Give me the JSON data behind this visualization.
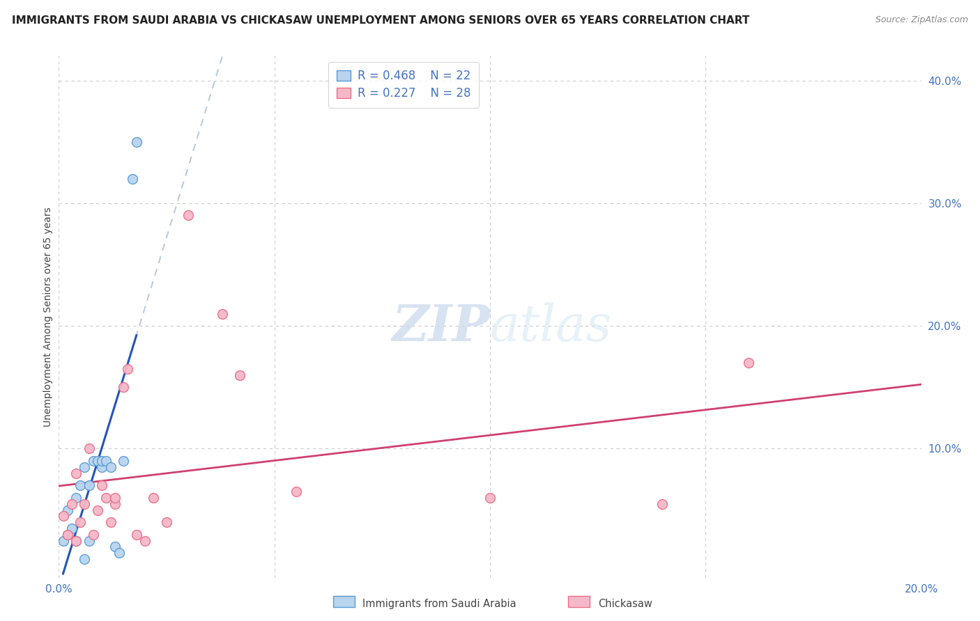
{
  "title": "IMMIGRANTS FROM SAUDI ARABIA VS CHICKASAW UNEMPLOYMENT AMONG SENIORS OVER 65 YEARS CORRELATION CHART",
  "source": "Source: ZipAtlas.com",
  "ylabel": "Unemployment Among Seniors over 65 years",
  "xlim": [
    0.0,
    0.2
  ],
  "ylim": [
    -0.005,
    0.42
  ],
  "x_ticks": [
    0.0,
    0.05,
    0.1,
    0.15,
    0.2
  ],
  "x_tick_labels": [
    "0.0%",
    "",
    "",
    "",
    "20.0%"
  ],
  "y_ticks_right": [
    0.1,
    0.2,
    0.3,
    0.4
  ],
  "y_tick_right_labels": [
    "10.0%",
    "20.0%",
    "30.0%",
    "40.0%"
  ],
  "series1_label": "Immigrants from Saudi Arabia",
  "series2_label": "Chickasaw",
  "series1_R": "0.468",
  "series1_N": "22",
  "series2_R": "0.227",
  "series2_N": "28",
  "series1_color": "#b8d4ee",
  "series2_color": "#f5b8c8",
  "series1_edge_color": "#5b9bd5",
  "series2_edge_color": "#e8708a",
  "trendline1_color": "#2255bb",
  "trendline2_color": "#d04070",
  "trendline1_dashed_color": "#bbccdd",
  "marker_size": 100,
  "series1_x": [
    0.001,
    0.002,
    0.002,
    0.003,
    0.004,
    0.004,
    0.005,
    0.006,
    0.006,
    0.007,
    0.007,
    0.008,
    0.009,
    0.01,
    0.01,
    0.011,
    0.012,
    0.013,
    0.014,
    0.015,
    0.017,
    0.018
  ],
  "series1_y": [
    0.025,
    0.03,
    0.05,
    0.035,
    0.06,
    0.025,
    0.07,
    0.01,
    0.085,
    0.07,
    0.025,
    0.09,
    0.09,
    0.085,
    0.09,
    0.09,
    0.085,
    0.02,
    0.015,
    0.09,
    0.32,
    0.35
  ],
  "series2_x": [
    0.001,
    0.002,
    0.003,
    0.004,
    0.004,
    0.005,
    0.006,
    0.007,
    0.008,
    0.009,
    0.01,
    0.011,
    0.012,
    0.013,
    0.013,
    0.015,
    0.016,
    0.018,
    0.02,
    0.022,
    0.025,
    0.03,
    0.038,
    0.042,
    0.055,
    0.1,
    0.14,
    0.16
  ],
  "series2_y": [
    0.045,
    0.03,
    0.055,
    0.08,
    0.025,
    0.04,
    0.055,
    0.1,
    0.03,
    0.05,
    0.07,
    0.06,
    0.04,
    0.055,
    0.06,
    0.15,
    0.165,
    0.03,
    0.025,
    0.06,
    0.04,
    0.29,
    0.21,
    0.16,
    0.065,
    0.06,
    0.055,
    0.17
  ],
  "watermark_zip": "ZIP",
  "watermark_atlas": "atlas",
  "background_color": "#ffffff",
  "grid_color": "#cccccc",
  "title_fontsize": 11,
  "source_fontsize": 9,
  "legend_fontsize": 12,
  "axis_label_fontsize": 10,
  "tick_fontsize": 11
}
